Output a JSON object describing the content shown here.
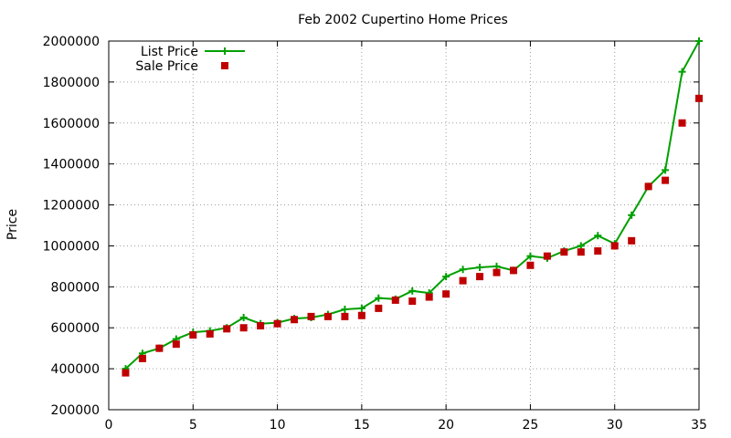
{
  "chart_data": {
    "type": "line",
    "title": "Feb 2002 Cupertino Home Prices",
    "xlabel": "",
    "ylabel": "Price",
    "xlim": [
      0,
      35
    ],
    "ylim": [
      200000,
      2000000
    ],
    "x_ticks": [
      "0",
      "5",
      "10",
      "15",
      "20",
      "25",
      "30",
      "35"
    ],
    "y_ticks": [
      "200000",
      "400000",
      "600000",
      "800000",
      "1000000",
      "1200000",
      "1400000",
      "1600000",
      "1800000",
      "2000000"
    ],
    "grid": true,
    "legend_position": "top-left",
    "x": [
      1,
      2,
      3,
      4,
      5,
      6,
      7,
      8,
      9,
      10,
      11,
      12,
      13,
      14,
      15,
      16,
      17,
      18,
      19,
      20,
      21,
      22,
      23,
      24,
      25,
      26,
      27,
      28,
      29,
      30,
      31,
      32,
      33,
      34,
      35
    ],
    "series": [
      {
        "name": "List Price",
        "style": "linespoints",
        "color": "#00a000",
        "values": [
          400000,
          475000,
          500000,
          545000,
          578000,
          585000,
          600000,
          650000,
          620000,
          625000,
          645000,
          650000,
          665000,
          690000,
          695000,
          745000,
          740000,
          780000,
          770000,
          850000,
          885000,
          895000,
          900000,
          880000,
          950000,
          940000,
          975000,
          1000000,
          1050000,
          1010000,
          1150000,
          1290000,
          1370000,
          1850000,
          2000000
        ]
      },
      {
        "name": "Sale Price",
        "style": "points",
        "color": "#c00000",
        "values": [
          380000,
          450000,
          500000,
          520000,
          565000,
          570000,
          595000,
          600000,
          610000,
          620000,
          640000,
          655000,
          655000,
          655000,
          660000,
          695000,
          735000,
          730000,
          750000,
          765000,
          830000,
          850000,
          870000,
          880000,
          905000,
          950000,
          970000,
          970000,
          975000,
          1000000,
          1025000,
          1290000,
          1320000,
          1600000,
          1720000
        ]
      }
    ]
  }
}
